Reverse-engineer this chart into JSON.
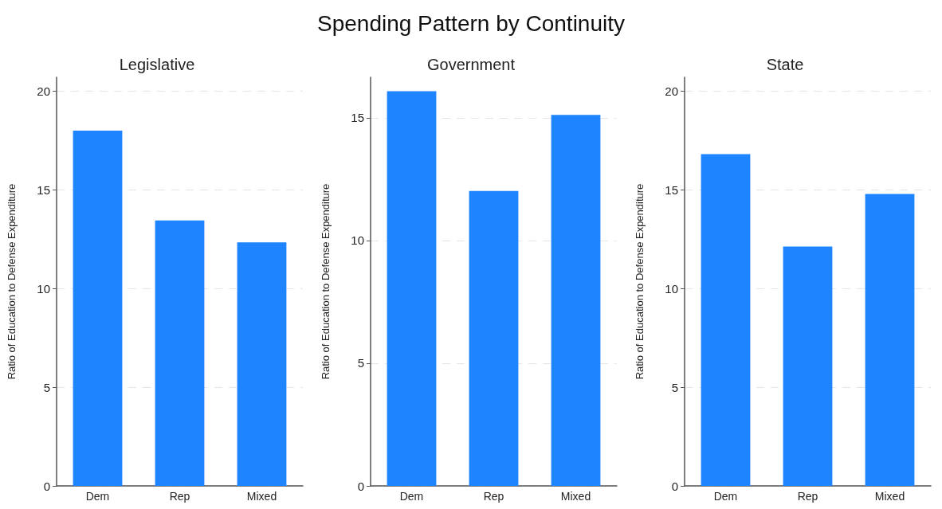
{
  "chart_data": [
    {
      "type": "other",
      "title": "Spending Pattern by Continuity"
    },
    {
      "type": "bar",
      "title": "Legislative",
      "ylabel": "Ratio of Education to Defense Expenditure",
      "categories": [
        "Dem",
        "Rep",
        "Mixed"
      ],
      "values": [
        18.0,
        13.45,
        12.34
      ],
      "color": "#1e84ff",
      "ylim": [
        0,
        20.7
      ],
      "yticks": [
        0,
        5,
        10,
        15,
        20
      ],
      "grid": "y"
    },
    {
      "type": "bar",
      "title": "Government",
      "ylabel": "Ratio of Education to Defense Expenditure",
      "categories": [
        "Dem",
        "Rep",
        "Mixed"
      ],
      "values": [
        16.08,
        12.02,
        15.12
      ],
      "color": "#1e84ff",
      "ylim": [
        0,
        16.65
      ],
      "yticks": [
        0,
        5,
        10,
        15
      ],
      "grid": "y"
    },
    {
      "type": "bar",
      "title": "State",
      "ylabel": "Ratio of Education to Defense Expenditure",
      "categories": [
        "Dem",
        "Rep",
        "Mixed"
      ],
      "values": [
        16.81,
        12.13,
        14.79
      ],
      "color": "#1e84ff",
      "ylim": [
        0,
        20.7
      ],
      "yticks": [
        0,
        5,
        10,
        15,
        20
      ],
      "grid": "y"
    }
  ]
}
